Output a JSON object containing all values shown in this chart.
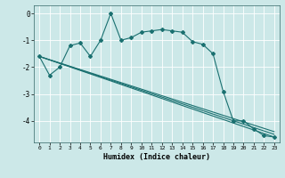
{
  "title": "",
  "xlabel": "Humidex (Indice chaleur)",
  "ylabel": "",
  "bg_color": "#cce8e8",
  "grid_color": "#ffffff",
  "line_color": "#1a7070",
  "xlim": [
    -0.5,
    23.5
  ],
  "ylim": [
    -4.8,
    0.3
  ],
  "yticks": [
    0,
    -1,
    -2,
    -3,
    -4
  ],
  "xticks": [
    0,
    1,
    2,
    3,
    4,
    5,
    6,
    7,
    8,
    9,
    10,
    11,
    12,
    13,
    14,
    15,
    16,
    17,
    18,
    19,
    20,
    21,
    22,
    23
  ],
  "series1_x": [
    0,
    1,
    2,
    3,
    4,
    5,
    6,
    7,
    8,
    9,
    10,
    11,
    12,
    13,
    14,
    15,
    16,
    17,
    18,
    19,
    20,
    21,
    22,
    23
  ],
  "series1_y": [
    -1.6,
    -2.3,
    -2.0,
    -1.2,
    -1.1,
    -1.6,
    -1.0,
    0.0,
    -1.0,
    -0.9,
    -0.7,
    -0.65,
    -0.6,
    -0.65,
    -0.7,
    -1.05,
    -1.15,
    -1.5,
    -2.9,
    -4.0,
    -4.0,
    -4.3,
    -4.55,
    -4.6
  ],
  "series2_x": [
    0,
    23
  ],
  "series2_y": [
    -1.6,
    -4.6
  ],
  "series3_x": [
    0,
    23
  ],
  "series3_y": [
    -1.6,
    -4.5
  ],
  "series4_x": [
    0,
    23
  ],
  "series4_y": [
    -1.6,
    -4.4
  ]
}
